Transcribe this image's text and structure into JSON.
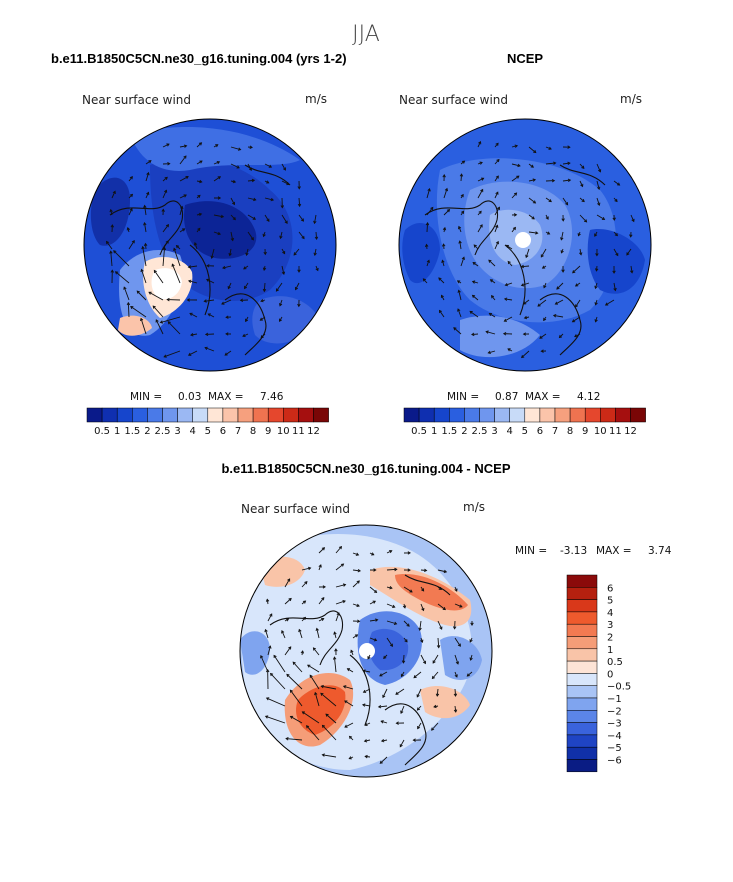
{
  "season": "JJA",
  "chart_data": [
    {
      "type": "heatmap",
      "title": "b.e11.B1850C5CN.ne30_g16.tuning.004 (yrs 1-2)",
      "variable": "Near surface wind",
      "units": "m/s",
      "projection": "north polar stereographic",
      "min_label": "MIN =",
      "min": "0.03",
      "max_label": "MAX =",
      "max": "7.46",
      "colorbar_labels": [
        "0.5",
        "1",
        "1.5",
        "2",
        "2.5",
        "3",
        "4",
        "5",
        "6",
        "7",
        "8",
        "9",
        "10",
        "11",
        "12"
      ],
      "colors": [
        "#0a1a8a",
        "#0f2fb0",
        "#1645cc",
        "#2a5fe0",
        "#4a7ae8",
        "#6f96ee",
        "#9bb8f3",
        "#c8dbf8",
        "#ffe6d6",
        "#fbc4aa",
        "#f6a07e",
        "#ef7350",
        "#e5472d",
        "#cc2a17",
        "#a50f0f",
        "#7a0606"
      ]
    },
    {
      "type": "heatmap",
      "title": "NCEP",
      "variable": "Near surface wind",
      "units": "m/s",
      "projection": "north polar stereographic",
      "min_label": "MIN =",
      "min": "0.87",
      "max_label": "MAX =",
      "max": "4.12",
      "colorbar_labels": [
        "0.5",
        "1",
        "1.5",
        "2",
        "2.5",
        "3",
        "4",
        "5",
        "6",
        "7",
        "8",
        "9",
        "10",
        "11",
        "12"
      ],
      "colors": [
        "#0a1a8a",
        "#0f2fb0",
        "#1645cc",
        "#2a5fe0",
        "#4a7ae8",
        "#6f96ee",
        "#9bb8f3",
        "#c8dbf8",
        "#ffe6d6",
        "#fbc4aa",
        "#f6a07e",
        "#ef7350",
        "#e5472d",
        "#cc2a17",
        "#a50f0f",
        "#7a0606"
      ]
    },
    {
      "type": "heatmap",
      "title": "b.e11.B1850C5CN.ne30_g16.tuning.004 - NCEP",
      "variable": "Near surface wind",
      "units": "m/s",
      "projection": "north polar stereographic",
      "min_label": "MIN =",
      "min": "-3.13",
      "max_label": "MAX =",
      "max": "3.74",
      "colorbar_labels": [
        "6",
        "5",
        "4",
        "3",
        "2",
        "1",
        "0.5",
        "0",
        "−0.5",
        "−1",
        "−2",
        "−3",
        "−4",
        "−5",
        "−6"
      ],
      "colors": [
        "#8b0a0a",
        "#b5200f",
        "#d9381a",
        "#ee5a2d",
        "#f27a52",
        "#f59d78",
        "#f9c4a8",
        "#fde4d6",
        "#d8e6fb",
        "#a9c4f5",
        "#7fa4ef",
        "#5b85e8",
        "#3a63dc",
        "#1f44c4",
        "#1030a8",
        "#0a1c84"
      ]
    }
  ]
}
